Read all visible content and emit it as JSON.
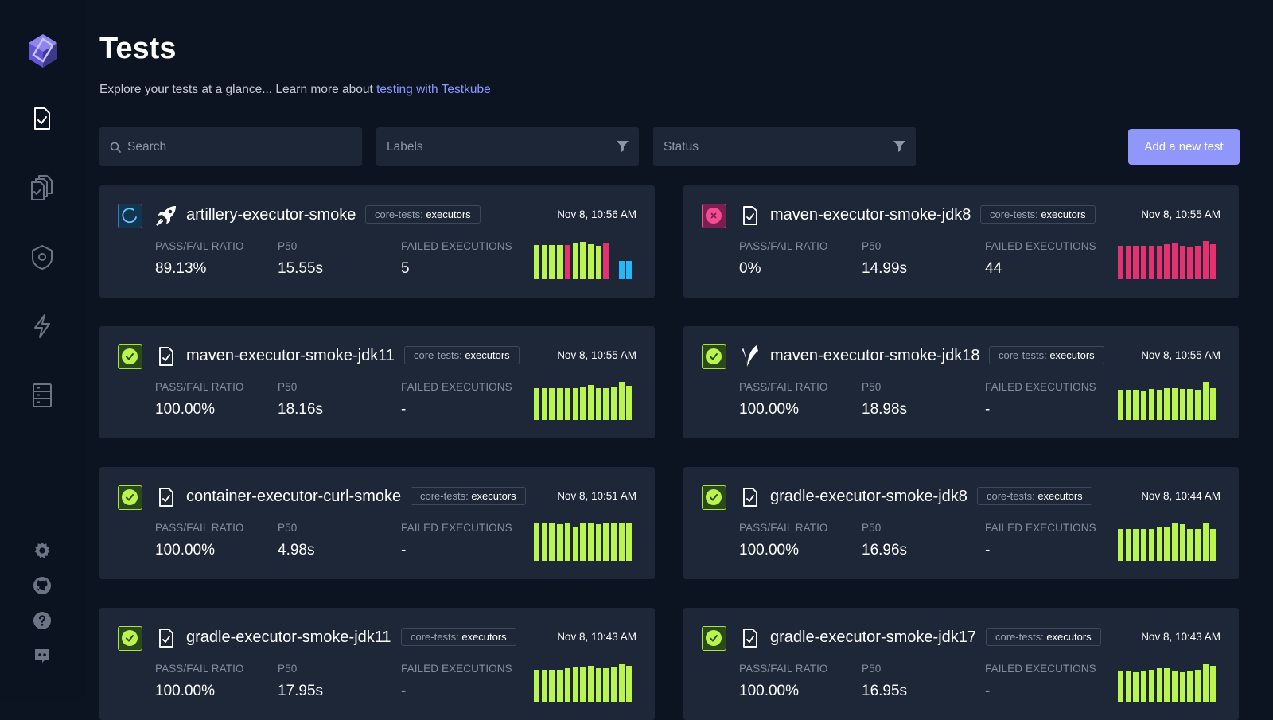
{
  "header": {
    "title": "Tests",
    "subtitle_text": "Explore your tests at a glance... Learn more about ",
    "subtitle_link": "testing with Testkube"
  },
  "filters": {
    "search_placeholder": "Search",
    "labels_placeholder": "Labels",
    "status_placeholder": "Status",
    "add_button": "Add a new test"
  },
  "metric_labels": {
    "ratio": "PASS/FAIL RATIO",
    "p50": "P50",
    "failed": "FAILED EXECUTIONS"
  },
  "colors": {
    "passed": "#b9f44f",
    "failed": "#e5316f",
    "running": "#29b6f6",
    "accent": "#8f97fa"
  },
  "tests": [
    {
      "name": "artillery-executor-smoke",
      "label_key": "core-tests:",
      "label_value": "executors",
      "date": "Nov 8, 10:56 AM",
      "status": "running",
      "executor_icon": "rocket-icon",
      "ratio": "89.13%",
      "p50": "15.55s",
      "failed": "5",
      "executions": [
        {
          "duration": 0.86,
          "status": "passed"
        },
        {
          "duration": 0.86,
          "status": "passed"
        },
        {
          "duration": 0.86,
          "status": "passed"
        },
        {
          "duration": 0.86,
          "status": "passed"
        },
        {
          "duration": 0.86,
          "status": "failed"
        },
        {
          "duration": 0.9,
          "status": "passed"
        },
        {
          "duration": 0.94,
          "status": "passed"
        },
        {
          "duration": 0.88,
          "status": "passed"
        },
        {
          "duration": 0.84,
          "status": "passed"
        },
        {
          "duration": 0.9,
          "status": "failed"
        },
        {
          "duration": 0.0,
          "status": "none"
        },
        {
          "duration": 0.46,
          "status": "running"
        },
        {
          "duration": 0.46,
          "status": "running"
        }
      ]
    },
    {
      "name": "maven-executor-smoke-jdk8",
      "label_key": "core-tests:",
      "label_value": "executors",
      "date": "Nov 8, 10:55 AM",
      "status": "failed",
      "executor_icon": "file-check-icon",
      "ratio": "0%",
      "p50": "14.99s",
      "failed": "44",
      "executions": [
        {
          "duration": 0.84,
          "status": "failed"
        },
        {
          "duration": 0.84,
          "status": "failed"
        },
        {
          "duration": 0.84,
          "status": "failed"
        },
        {
          "duration": 0.84,
          "status": "failed"
        },
        {
          "duration": 0.84,
          "status": "failed"
        },
        {
          "duration": 0.84,
          "status": "failed"
        },
        {
          "duration": 0.88,
          "status": "failed"
        },
        {
          "duration": 0.9,
          "status": "failed"
        },
        {
          "duration": 0.84,
          "status": "failed"
        },
        {
          "duration": 0.8,
          "status": "failed"
        },
        {
          "duration": 0.84,
          "status": "failed"
        },
        {
          "duration": 0.96,
          "status": "failed"
        },
        {
          "duration": 0.88,
          "status": "failed"
        }
      ]
    },
    {
      "name": "maven-executor-smoke-jdk11",
      "label_key": "core-tests:",
      "label_value": "executors",
      "date": "Nov 8, 10:55 AM",
      "status": "passed",
      "executor_icon": "file-check-icon",
      "ratio": "100.00%",
      "p50": "18.16s",
      "failed": "-",
      "executions": [
        {
          "duration": 0.8,
          "status": "passed"
        },
        {
          "duration": 0.8,
          "status": "passed"
        },
        {
          "duration": 0.8,
          "status": "passed"
        },
        {
          "duration": 0.8,
          "status": "passed"
        },
        {
          "duration": 0.8,
          "status": "passed"
        },
        {
          "duration": 0.8,
          "status": "passed"
        },
        {
          "duration": 0.84,
          "status": "passed"
        },
        {
          "duration": 0.88,
          "status": "passed"
        },
        {
          "duration": 0.8,
          "status": "passed"
        },
        {
          "duration": 0.8,
          "status": "passed"
        },
        {
          "duration": 0.84,
          "status": "passed"
        },
        {
          "duration": 0.96,
          "status": "passed"
        },
        {
          "duration": 0.86,
          "status": "passed"
        }
      ]
    },
    {
      "name": "maven-executor-smoke-jdk18",
      "label_key": "core-tests:",
      "label_value": "executors",
      "date": "Nov 8, 10:55 AM",
      "status": "passed",
      "executor_icon": "maven-feather-icon",
      "ratio": "100.00%",
      "p50": "18.98s",
      "failed": "-",
      "executions": [
        {
          "duration": 0.76,
          "status": "passed"
        },
        {
          "duration": 0.76,
          "status": "passed"
        },
        {
          "duration": 0.76,
          "status": "passed"
        },
        {
          "duration": 0.74,
          "status": "passed"
        },
        {
          "duration": 0.78,
          "status": "passed"
        },
        {
          "duration": 0.76,
          "status": "passed"
        },
        {
          "duration": 0.8,
          "status": "passed"
        },
        {
          "duration": 0.8,
          "status": "passed"
        },
        {
          "duration": 0.78,
          "status": "passed"
        },
        {
          "duration": 0.78,
          "status": "passed"
        },
        {
          "duration": 0.76,
          "status": "passed"
        },
        {
          "duration": 0.96,
          "status": "passed"
        },
        {
          "duration": 0.8,
          "status": "passed"
        }
      ]
    },
    {
      "name": "container-executor-curl-smoke",
      "label_key": "core-tests:",
      "label_value": "executors",
      "date": "Nov 8, 10:51 AM",
      "status": "passed",
      "executor_icon": "file-check-icon",
      "ratio": "100.00%",
      "p50": "4.98s",
      "failed": "-",
      "executions": [
        {
          "duration": 0.96,
          "status": "passed"
        },
        {
          "duration": 0.96,
          "status": "passed"
        },
        {
          "duration": 0.96,
          "status": "passed"
        },
        {
          "duration": 0.92,
          "status": "passed"
        },
        {
          "duration": 0.96,
          "status": "passed"
        },
        {
          "duration": 0.84,
          "status": "passed"
        },
        {
          "duration": 0.96,
          "status": "passed"
        },
        {
          "duration": 0.96,
          "status": "passed"
        },
        {
          "duration": 0.92,
          "status": "passed"
        },
        {
          "duration": 0.96,
          "status": "passed"
        },
        {
          "duration": 0.96,
          "status": "passed"
        },
        {
          "duration": 0.96,
          "status": "passed"
        },
        {
          "duration": 0.96,
          "status": "passed"
        }
      ]
    },
    {
      "name": "gradle-executor-smoke-jdk8",
      "label_key": "core-tests:",
      "label_value": "executors",
      "date": "Nov 8, 10:44 AM",
      "status": "passed",
      "executor_icon": "file-check-icon",
      "ratio": "100.00%",
      "p50": "16.96s",
      "failed": "-",
      "executions": [
        {
          "duration": 0.8,
          "status": "passed"
        },
        {
          "duration": 0.8,
          "status": "passed"
        },
        {
          "duration": 0.8,
          "status": "passed"
        },
        {
          "duration": 0.8,
          "status": "passed"
        },
        {
          "duration": 0.8,
          "status": "passed"
        },
        {
          "duration": 0.84,
          "status": "passed"
        },
        {
          "duration": 0.84,
          "status": "passed"
        },
        {
          "duration": 0.94,
          "status": "passed"
        },
        {
          "duration": 0.92,
          "status": "passed"
        },
        {
          "duration": 0.8,
          "status": "passed"
        },
        {
          "duration": 0.8,
          "status": "passed"
        },
        {
          "duration": 0.96,
          "status": "passed"
        },
        {
          "duration": 0.8,
          "status": "passed"
        }
      ]
    },
    {
      "name": "gradle-executor-smoke-jdk11",
      "label_key": "core-tests:",
      "label_value": "executors",
      "date": "Nov 8, 10:43 AM",
      "status": "passed",
      "executor_icon": "file-check-icon",
      "ratio": "100.00%",
      "p50": "17.95s",
      "failed": "-",
      "executions": [
        {
          "duration": 0.8,
          "status": "passed"
        },
        {
          "duration": 0.8,
          "status": "passed"
        },
        {
          "duration": 0.8,
          "status": "passed"
        },
        {
          "duration": 0.8,
          "status": "passed"
        },
        {
          "duration": 0.84,
          "status": "passed"
        },
        {
          "duration": 0.86,
          "status": "passed"
        },
        {
          "duration": 0.86,
          "status": "passed"
        },
        {
          "duration": 0.9,
          "status": "passed"
        },
        {
          "duration": 0.84,
          "status": "passed"
        },
        {
          "duration": 0.84,
          "status": "passed"
        },
        {
          "duration": 0.86,
          "status": "passed"
        },
        {
          "duration": 0.96,
          "status": "passed"
        },
        {
          "duration": 0.9,
          "status": "passed"
        }
      ]
    },
    {
      "name": "gradle-executor-smoke-jdk17",
      "label_key": "core-tests:",
      "label_value": "executors",
      "date": "Nov 8, 10:43 AM",
      "status": "passed",
      "executor_icon": "file-check-icon",
      "ratio": "100.00%",
      "p50": "16.95s",
      "failed": "-",
      "executions": [
        {
          "duration": 0.76,
          "status": "passed"
        },
        {
          "duration": 0.76,
          "status": "passed"
        },
        {
          "duration": 0.74,
          "status": "passed"
        },
        {
          "duration": 0.76,
          "status": "passed"
        },
        {
          "duration": 0.8,
          "status": "passed"
        },
        {
          "duration": 0.84,
          "status": "passed"
        },
        {
          "duration": 0.84,
          "status": "passed"
        },
        {
          "duration": 0.76,
          "status": "passed"
        },
        {
          "duration": 0.74,
          "status": "passed"
        },
        {
          "duration": 0.76,
          "status": "passed"
        },
        {
          "duration": 0.8,
          "status": "passed"
        },
        {
          "duration": 0.96,
          "status": "passed"
        },
        {
          "duration": 0.9,
          "status": "passed"
        }
      ]
    }
  ]
}
